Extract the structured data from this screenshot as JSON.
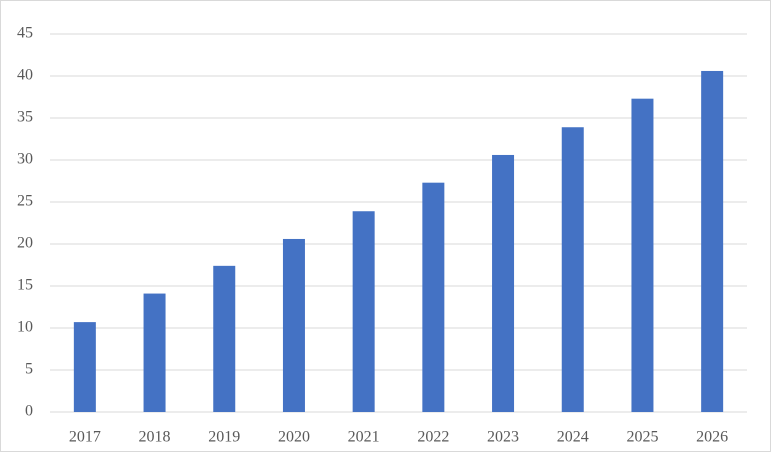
{
  "chart_data": {
    "type": "bar",
    "categories": [
      "2017",
      "2018",
      "2019",
      "2020",
      "2021",
      "2022",
      "2023",
      "2024",
      "2025",
      "2026"
    ],
    "values": [
      10.7,
      14.1,
      17.4,
      20.6,
      23.9,
      27.3,
      30.6,
      33.9,
      37.3,
      40.6
    ],
    "color": "#4472c4",
    "ylim": [
      0,
      45
    ],
    "yticks": [
      0,
      5,
      10,
      15,
      20,
      25,
      30,
      35,
      40,
      45
    ],
    "grid": true
  }
}
